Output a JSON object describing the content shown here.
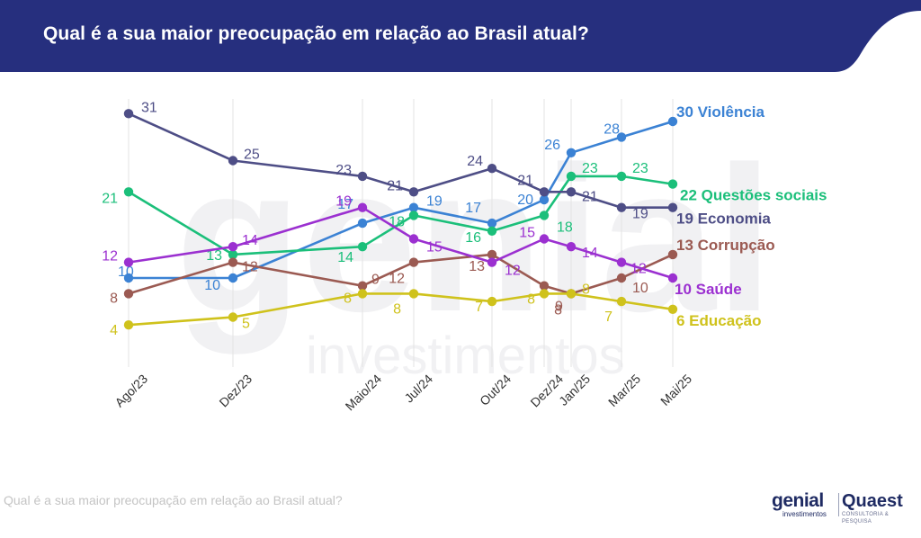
{
  "header": {
    "title": "Qual é a sua maior preocupação em relação ao Brasil atual?"
  },
  "footer": {
    "caption": "Qual é a sua maior preocupação em relação ao Brasil atual?"
  },
  "watermark": {
    "brand": "genial",
    "sub": "investimentos"
  },
  "logos": {
    "genial": {
      "brand": "genial",
      "sub": "investimentos"
    },
    "quaest": {
      "brand": "Quaest",
      "sub": "CONSULTORIA & PESQUISA"
    }
  },
  "colors": {
    "header_bg": "#262f7e",
    "Violência": "#3b82d4",
    "Questões sociais": "#1bbf7a",
    "Economia": "#4e4e86",
    "Corrupção": "#9b5a52",
    "Saúde": "#9b30d0",
    "Educação": "#cfc21c"
  },
  "chart_data": {
    "type": "line",
    "title": "Qual é a sua maior preocupação em relação ao Brasil atual?",
    "xlabel": "",
    "ylabel": "",
    "categories": [
      "Ago/23",
      "Dez/23",
      "Maio/24",
      "Jul/24",
      "Out/24",
      "Dez/24",
      "Jan/25",
      "Mar/25",
      "Mai/25"
    ],
    "grid": "vertical",
    "legend": "end-of-line labels",
    "series": [
      {
        "name": "Violência",
        "values": [
          10,
          10,
          17,
          19,
          17,
          20,
          26,
          28,
          30
        ],
        "end_label": "30 Violência"
      },
      {
        "name": "Questões sociais",
        "values": [
          21,
          13,
          14,
          18,
          16,
          18,
          23,
          23,
          22
        ],
        "end_label": "22 Questões sociais"
      },
      {
        "name": "Economia",
        "values": [
          31,
          25,
          23,
          21,
          24,
          21,
          21,
          19,
          19
        ],
        "end_label": "19 Economia"
      },
      {
        "name": "Corrupção",
        "values": [
          8,
          12,
          9,
          12,
          13,
          9,
          8,
          10,
          13
        ],
        "end_label": "13 Corrupção"
      },
      {
        "name": "Saúde",
        "values": [
          12,
          14,
          19,
          15,
          12,
          15,
          14,
          12,
          10
        ],
        "end_label": "10 Saúde"
      },
      {
        "name": "Educação",
        "values": [
          4,
          5,
          8,
          8,
          7,
          8,
          8,
          7,
          6
        ],
        "end_label": "6 Educação"
      }
    ]
  }
}
